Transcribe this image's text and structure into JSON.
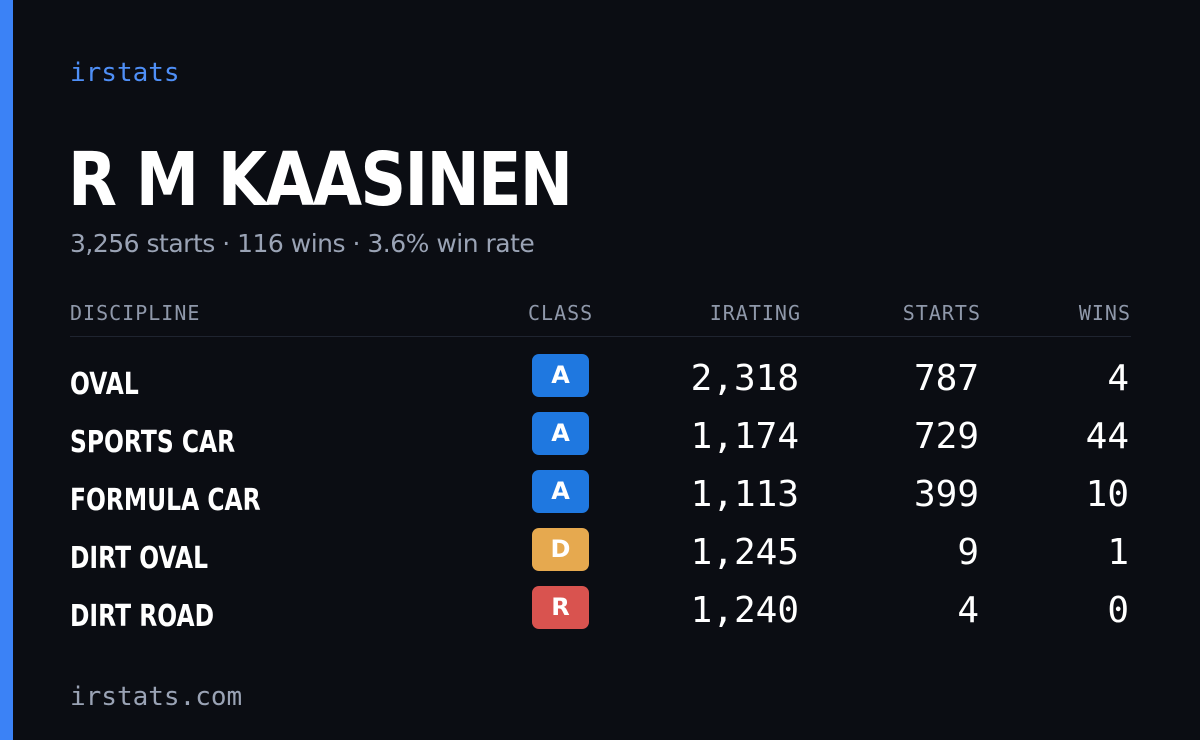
{
  "brand": "irstats",
  "driver": {
    "name": "R M KAASINEN",
    "summary": "3,256 starts · 116 wins · 3.6% win rate"
  },
  "table": {
    "headers": {
      "discipline": "DISCIPLINE",
      "class": "CLASS",
      "irating": "IRATING",
      "starts": "STARTS",
      "wins": "WINS"
    },
    "rows": [
      {
        "discipline": "OVAL",
        "class": "A",
        "class_color": "#1f78e0",
        "irating": "2,318",
        "starts": "787",
        "wins": "4"
      },
      {
        "discipline": "SPORTS CAR",
        "class": "A",
        "class_color": "#1f78e0",
        "irating": "1,174",
        "starts": "729",
        "wins": "44"
      },
      {
        "discipline": "FORMULA CAR",
        "class": "A",
        "class_color": "#1f78e0",
        "irating": "1,113",
        "starts": "399",
        "wins": "10"
      },
      {
        "discipline": "DIRT OVAL",
        "class": "D",
        "class_color": "#e6a94f",
        "irating": "1,245",
        "starts": "9",
        "wins": "1"
      },
      {
        "discipline": "DIRT ROAD",
        "class": "R",
        "class_color": "#d9534f",
        "irating": "1,240",
        "starts": "4",
        "wins": "0"
      }
    ]
  },
  "footer": "irstats.com",
  "colors": {
    "background": "#0b0d13",
    "accent": "#3b82f6",
    "brand_text": "#4f8ff7",
    "muted_text": "#9aa3b5"
  }
}
